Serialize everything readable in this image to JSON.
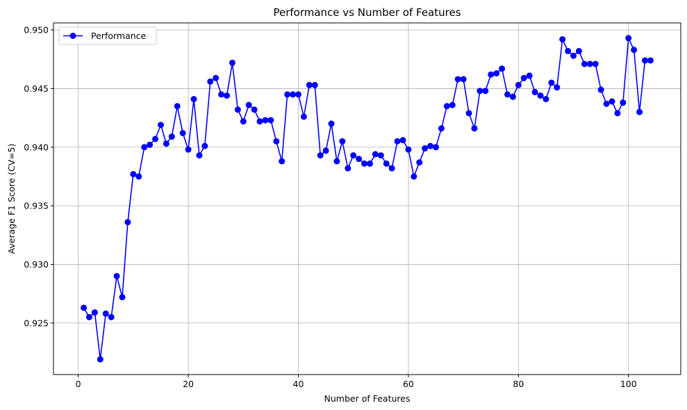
{
  "chart_data": {
    "type": "line",
    "title": "Performance vs Number of Features",
    "xlabel": "Number of Features",
    "ylabel": "Average F1 Score (CV=5)",
    "xlim": [
      -4.5,
      109.5
    ],
    "ylim": [
      0.9206,
      0.9506
    ],
    "xticks": [
      0,
      20,
      40,
      60,
      80,
      100
    ],
    "yticks": [
      0.925,
      0.93,
      0.935,
      0.94,
      0.945,
      0.95
    ],
    "ytick_labels": [
      "0.925",
      "0.930",
      "0.935",
      "0.940",
      "0.945",
      "0.950"
    ],
    "grid": true,
    "legend_position": "upper left",
    "series": [
      {
        "name": "Performance",
        "color": "#0000ff",
        "marker": "circle",
        "x": [
          1,
          2,
          3,
          4,
          5,
          6,
          7,
          8,
          9,
          10,
          11,
          12,
          13,
          14,
          15,
          16,
          17,
          18,
          19,
          20,
          21,
          22,
          23,
          24,
          25,
          26,
          27,
          28,
          29,
          30,
          31,
          32,
          33,
          34,
          35,
          36,
          37,
          38,
          39,
          40,
          41,
          42,
          43,
          44,
          45,
          46,
          47,
          48,
          49,
          50,
          51,
          52,
          53,
          54,
          55,
          56,
          57,
          58,
          59,
          60,
          61,
          62,
          63,
          64,
          65,
          66,
          67,
          68,
          69,
          70,
          71,
          72,
          73,
          74,
          75,
          76,
          77,
          78,
          79,
          80,
          81,
          82,
          83,
          84,
          85,
          86,
          87,
          88,
          89,
          90,
          91,
          92,
          93,
          94,
          95,
          96,
          97,
          98,
          99,
          100,
          101,
          102,
          103,
          104
        ],
        "y": [
          0.9263,
          0.9255,
          0.9259,
          0.9219,
          0.9258,
          0.9255,
          0.929,
          0.9272,
          0.9336,
          0.9377,
          0.9375,
          0.94,
          0.9402,
          0.9407,
          0.9419,
          0.9403,
          0.9409,
          0.9435,
          0.9412,
          0.9398,
          0.9441,
          0.9393,
          0.9401,
          0.9456,
          0.9459,
          0.9445,
          0.9444,
          0.9472,
          0.9432,
          0.9422,
          0.9436,
          0.9432,
          0.9422,
          0.9423,
          0.9423,
          0.9405,
          0.9388,
          0.9445,
          0.9445,
          0.9445,
          0.9426,
          0.9453,
          0.9453,
          0.9393,
          0.9397,
          0.942,
          0.9388,
          0.9405,
          0.9382,
          0.9393,
          0.939,
          0.9386,
          0.9386,
          0.9394,
          0.9393,
          0.9386,
          0.9382,
          0.9405,
          0.9406,
          0.9398,
          0.9375,
          0.9387,
          0.9399,
          0.9401,
          0.94,
          0.9416,
          0.9435,
          0.9436,
          0.9458,
          0.9458,
          0.9429,
          0.9416,
          0.9448,
          0.9448,
          0.9462,
          0.9463,
          0.9467,
          0.9445,
          0.9443,
          0.9453,
          0.9459,
          0.9461,
          0.9447,
          0.9444,
          0.9441,
          0.9455,
          0.9451,
          0.9492,
          0.9482,
          0.9478,
          0.9482,
          0.9471,
          0.9471,
          0.9471,
          0.9449,
          0.9437,
          0.9439,
          0.9429,
          0.9438,
          0.9493,
          0.9483,
          0.943,
          0.9474,
          0.9474
        ]
      }
    ]
  }
}
